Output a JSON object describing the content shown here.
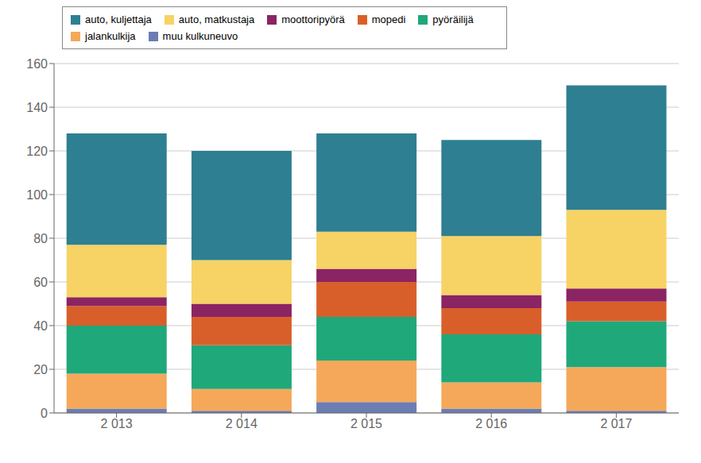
{
  "chart_data": {
    "type": "bar",
    "stacked": true,
    "categories": [
      "2 013",
      "2 014",
      "2 015",
      "2 016",
      "2 017"
    ],
    "series": [
      {
        "name": "muu kulkuneuvo",
        "color": "#6b7db3",
        "values": [
          2,
          1,
          5,
          2,
          1
        ]
      },
      {
        "name": "jalankulkija",
        "color": "#f5a85a",
        "values": [
          16,
          10,
          19,
          12,
          20
        ]
      },
      {
        "name": "pyöräilijä",
        "color": "#1fa87a",
        "values": [
          22,
          20,
          20,
          22,
          21
        ]
      },
      {
        "name": "mopedi",
        "color": "#d95f2a",
        "values": [
          9,
          13,
          16,
          12,
          9
        ]
      },
      {
        "name": "moottoripyörä",
        "color": "#8b2462",
        "values": [
          4,
          6,
          6,
          6,
          6
        ]
      },
      {
        "name": "auto, matkustaja",
        "color": "#f7d265",
        "values": [
          24,
          20,
          17,
          27,
          36
        ]
      },
      {
        "name": "auto, kuljettaja",
        "color": "#2e7f91",
        "values": [
          51,
          50,
          45,
          44,
          57
        ]
      }
    ],
    "ylim": [
      0,
      160
    ],
    "yticks": [
      0,
      20,
      40,
      60,
      80,
      100,
      120,
      140,
      160
    ],
    "grid": true,
    "legend": "top"
  }
}
